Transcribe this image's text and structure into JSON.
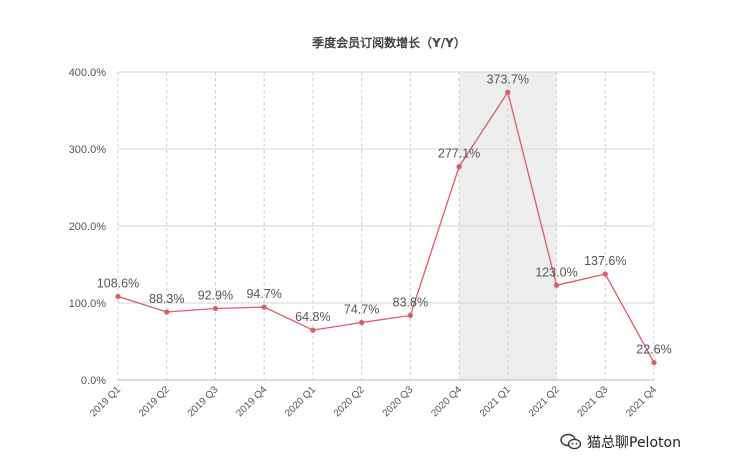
{
  "chart_data": {
    "type": "line",
    "title": "季度会员订阅数增长（Y/Y）",
    "categories": [
      "2019 Q1",
      "2019 Q2",
      "2019 Q3",
      "2019 Q4",
      "2020 Q1",
      "2020 Q2",
      "2020 Q3",
      "2020 Q4",
      "2021 Q1",
      "2021 Q2",
      "2021 Q3",
      "2021 Q4"
    ],
    "values": [
      108.6,
      88.3,
      92.9,
      94.7,
      64.8,
      74.7,
      83.8,
      277.1,
      373.7,
      123.0,
      137.6,
      22.6
    ],
    "data_labels": [
      "108.6%",
      "88.3%",
      "92.9%",
      "94.7%",
      "64.8%",
      "74.7%",
      "83.8%",
      "277.1%",
      "373.7%",
      "123.0%",
      "137.6%",
      "22.6%"
    ],
    "yticks": [
      0,
      100,
      200,
      300,
      400
    ],
    "ytick_labels": [
      "0.0%",
      "100.0%",
      "200.0%",
      "300.0%",
      "400.0%"
    ],
    "ylim": [
      0,
      400
    ],
    "highlight_range": [
      "2020 Q4",
      "2021 Q2"
    ],
    "grid": true,
    "line_color": "#e05a68",
    "highlight_color": "#eeeeee"
  },
  "watermark": {
    "text": "猫总聊Peloton",
    "icon": "wechat-icon"
  }
}
